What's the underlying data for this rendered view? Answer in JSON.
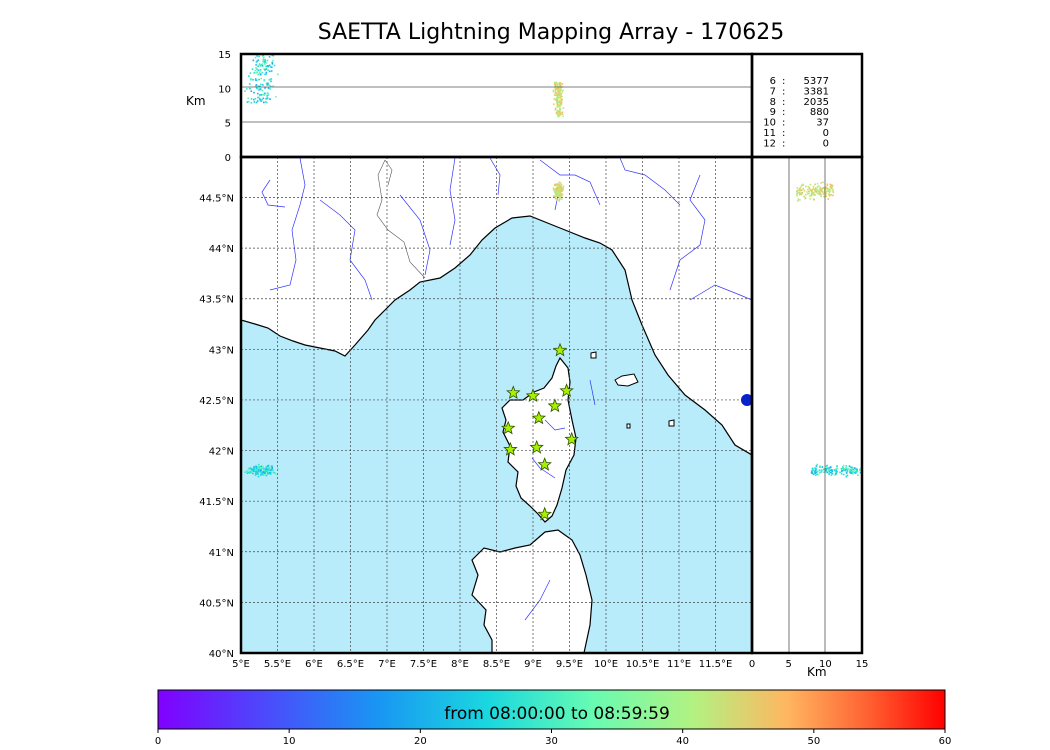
{
  "title": "SAETTA Lightning Mapping Array - 170625",
  "time_range_label": "from 08:00:00 to 08:59:59",
  "axes": {
    "alt_unit_label": "Km",
    "lon_ticks": [
      "5°E",
      "5.5°E",
      "6°E",
      "6.5°E",
      "7°E",
      "7.5°E",
      "8°E",
      "8.5°E",
      "9°E",
      "9.5°E",
      "10°E",
      "10.5°E",
      "11°E",
      "11.5°E"
    ],
    "lat_ticks": [
      "40°N",
      "40.5°N",
      "41°N",
      "41.5°N",
      "42°N",
      "42.5°N",
      "43°N",
      "43.5°N",
      "44°N",
      "44.5°N"
    ],
    "alt_ticks": [
      "0",
      "5",
      "10",
      "15"
    ],
    "alt_x_ticks": [
      "0",
      "5",
      "10",
      "15"
    ],
    "colorbar_ticks": [
      "0",
      "10",
      "20",
      "30",
      "40",
      "50",
      "60"
    ]
  },
  "station_counts": [
    {
      "stations": "6",
      "count": "5377",
      "highlight": false
    },
    {
      "stations": "7",
      "count": "3381",
      "highlight": true
    },
    {
      "stations": "8",
      "count": "2035",
      "highlight": false
    },
    {
      "stations": "9",
      "count": "880",
      "highlight": false
    },
    {
      "stations": "10",
      "count": "37",
      "highlight": false
    },
    {
      "stations": "11",
      "count": "0",
      "highlight": false
    },
    {
      "stations": "12",
      "count": "0",
      "highlight": false
    }
  ],
  "colors": {
    "sea": "#b8ecfb",
    "land": "#ffffff",
    "coast": "#000000",
    "rivers": "#3333ff",
    "borders": "#555555",
    "grid": "#444444",
    "station_fill": "#a6f000",
    "highlight_text": "#ff0000"
  },
  "stations_lonlat": [
    [
      9.37,
      42.99
    ],
    [
      8.73,
      42.57
    ],
    [
      9.0,
      42.54
    ],
    [
      9.46,
      42.59
    ],
    [
      9.3,
      42.44
    ],
    [
      9.08,
      42.32
    ],
    [
      8.66,
      42.22
    ],
    [
      8.69,
      42.01
    ],
    [
      9.05,
      42.03
    ],
    [
      9.53,
      42.11
    ],
    [
      9.16,
      41.86
    ],
    [
      9.16,
      41.37
    ]
  ],
  "lightning_clusters": [
    {
      "lon": [
        9.26,
        9.42
      ],
      "lat": [
        44.46,
        44.68
      ],
      "alt": [
        6,
        11
      ],
      "time_min": [
        38,
        48
      ]
    },
    {
      "lon": [
        5.0,
        5.55
      ],
      "lat": [
        41.74,
        41.88
      ],
      "alt": [
        8,
        15
      ],
      "time_min": [
        18,
        34
      ]
    }
  ]
}
